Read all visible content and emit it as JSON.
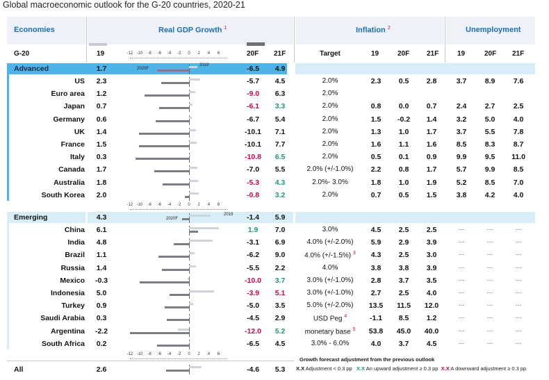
{
  "title": "Global macroeconomic outlook for the G-20 countries, 2020-21",
  "headers": {
    "economies": "Economies",
    "gdp": "Real GDP Growth",
    "gdp_sup": "1",
    "inflation": "Inflation",
    "inflation_sup": "2",
    "unemployment": "Unemployment"
  },
  "subheaders": {
    "g20": "G-20",
    "gdp_19": "19",
    "gdp_20f": "20F",
    "gdp_21f": "21F",
    "target": "Target",
    "inf_19": "19",
    "inf_20f": "20F",
    "inf_21f": "21F",
    "un_19": "19",
    "un_20f": "20F",
    "un_21f": "21F"
  },
  "axis_ticks": [
    "-12",
    "-10",
    "-8",
    "-6",
    "-4",
    "-2",
    "0",
    "2",
    "4",
    "6"
  ],
  "legend_labels": {
    "y2019": "2019",
    "y2020f": "2020F"
  },
  "advanced": {
    "label": "Advanced",
    "gdp19": "1.7",
    "gdp20f": "-6.5",
    "gdp21f": "4.9",
    "bar19": 1.7,
    "bar20f": -6.5,
    "rows": [
      {
        "name": "US",
        "gdp19": "2.3",
        "gdp20f": "-5.7",
        "gdp21f": "4.5",
        "bar19": 2.3,
        "bar20f": -5.7,
        "c20": "",
        "c21": "",
        "target": "2.0%",
        "inf19": "2.3",
        "inf20f": "0.5",
        "inf21f": "2.8",
        "un19": "3.7",
        "un20f": "8.9",
        "un21f": "7.6"
      },
      {
        "name": "Euro area",
        "gdp19": "1.2",
        "gdp20f": "-9.0",
        "gdp21f": "6.3",
        "bar19": 1.2,
        "bar20f": -9.0,
        "c20": "red",
        "c21": "",
        "target": "2.0%",
        "inf19": "",
        "inf20f": "",
        "inf21f": "",
        "un19": "",
        "un20f": "",
        "un21f": ""
      },
      {
        "name": "Japan",
        "gdp19": "0.7",
        "gdp20f": "-6.1",
        "gdp21f": "3.3",
        "bar19": 0.7,
        "bar20f": -6.1,
        "c20": "red",
        "c21": "green",
        "target": "2.0%",
        "inf19": "0.8",
        "inf20f": "0.0",
        "inf21f": "0.7",
        "un19": "2.4",
        "un20f": "2.7",
        "un21f": "2.5"
      },
      {
        "name": "Germany",
        "gdp19": "0.6",
        "gdp20f": "-6.7",
        "gdp21f": "5.4",
        "bar19": 0.6,
        "bar20f": -6.7,
        "c20": "",
        "c21": "",
        "target": "2.0%",
        "inf19": "1.5",
        "inf20f": "-0.2",
        "inf21f": "1.4",
        "un19": "3.2",
        "un20f": "5.0",
        "un21f": "4.0"
      },
      {
        "name": "UK",
        "gdp19": "1.4",
        "gdp20f": "-10.1",
        "gdp21f": "7.1",
        "bar19": 1.4,
        "bar20f": -10.1,
        "c20": "",
        "c21": "",
        "target": "2.0%",
        "inf19": "1.3",
        "inf20f": "1.0",
        "inf21f": "1.7",
        "un19": "3.7",
        "un20f": "5.5",
        "un21f": "7.8"
      },
      {
        "name": "France",
        "gdp19": "1.5",
        "gdp20f": "-10.1",
        "gdp21f": "7.7",
        "bar19": 1.5,
        "bar20f": -10.1,
        "c20": "",
        "c21": "",
        "target": "2.0%",
        "inf19": "1.6",
        "inf20f": "1.1",
        "inf21f": "1.6",
        "un19": "8.5",
        "un20f": "8.3",
        "un21f": "8.7"
      },
      {
        "name": "Italy",
        "gdp19": "0.3",
        "gdp20f": "-10.8",
        "gdp21f": "6.5",
        "bar19": 0.3,
        "bar20f": -10.8,
        "c20": "red",
        "c21": "green",
        "target": "2.0%",
        "inf19": "0.5",
        "inf20f": "0.1",
        "inf21f": "0.9",
        "un19": "9.9",
        "un20f": "9.5",
        "un21f": "11.0"
      },
      {
        "name": "Canada",
        "gdp19": "1.7",
        "gdp20f": "-7.0",
        "gdp21f": "5.5",
        "bar19": 1.7,
        "bar20f": -7.0,
        "c20": "",
        "c21": "",
        "target": "2.0% (+/-1.0%)",
        "inf19": "2.2",
        "inf20f": "0.8",
        "inf21f": "1.7",
        "un19": "5.7",
        "un20f": "9.9",
        "un21f": "8.5"
      },
      {
        "name": "Australia",
        "gdp19": "1.8",
        "gdp20f": "-5.3",
        "gdp21f": "4.3",
        "bar19": 1.8,
        "bar20f": -5.3,
        "c20": "red",
        "c21": "green",
        "target": "2.0%- 3.0%",
        "inf19": "1.8",
        "inf20f": "1.0",
        "inf21f": "1.9",
        "un19": "5.2",
        "un20f": "8.5",
        "un21f": "7.0"
      },
      {
        "name": "South Korea",
        "gdp19": "2.0",
        "gdp20f": "-0.8",
        "gdp21f": "3.2",
        "bar19": 2.0,
        "bar20f": -0.8,
        "c20": "red",
        "c21": "green",
        "target": "2.0%",
        "inf19": "0.7",
        "inf20f": "0.5",
        "inf21f": "1.5",
        "un19": "3.8",
        "un20f": "4.2",
        "un21f": "4.0"
      }
    ]
  },
  "emerging": {
    "label": "Emerging",
    "gdp19": "4.3",
    "gdp20f": "-1.4",
    "gdp21f": "5.9",
    "bar19": 4.3,
    "bar20f": -1.4,
    "rows": [
      {
        "name": "China",
        "gdp19": "6.1",
        "gdp20f": "1.9",
        "gdp21f": "7.0",
        "bar19": 6.1,
        "bar20f": 1.9,
        "c20": "green",
        "c21": "",
        "target": "3.0%",
        "tsup": "",
        "inf19": "4.5",
        "inf20f": "2.5",
        "inf21f": "2.5",
        "un19": "---",
        "un20f": "---",
        "un21f": "---"
      },
      {
        "name": "India",
        "gdp19": "4.8",
        "gdp20f": "-3.1",
        "gdp21f": "6.9",
        "bar19": 4.8,
        "bar20f": -3.1,
        "c20": "",
        "c21": "",
        "target": "4.0% (+/-2.0%)",
        "tsup": "",
        "inf19": "5.9",
        "inf20f": "2.9",
        "inf21f": "3.9",
        "un19": "---",
        "un20f": "---",
        "un21f": "---"
      },
      {
        "name": "Brazil",
        "gdp19": "1.1",
        "gdp20f": "-6.2",
        "gdp21f": "9.0",
        "bar19": 1.1,
        "bar20f": -6.2,
        "c20": "",
        "c21": "",
        "target": "4.0% (+/-1.5%)",
        "tsup": "3",
        "inf19": "4.3",
        "inf20f": "2.5",
        "inf21f": "3.0",
        "un19": "---",
        "un20f": "---",
        "un21f": "---"
      },
      {
        "name": "Russia",
        "gdp19": "1.4",
        "gdp20f": "-5.5",
        "gdp21f": "2.2",
        "bar19": 1.4,
        "bar20f": -5.5,
        "c20": "",
        "c21": "",
        "target": "4.0%",
        "tsup": "",
        "inf19": "3.8",
        "inf20f": "3.8",
        "inf21f": "3.9",
        "un19": "---",
        "un20f": "---",
        "un21f": "---"
      },
      {
        "name": "Mexico",
        "gdp19": "-0.3",
        "gdp20f": "-10.0",
        "gdp21f": "3.7",
        "bar19": -0.3,
        "bar20f": -10.0,
        "c20": "red",
        "c21": "green",
        "target": "3.0% (+/-1.0%)",
        "tsup": "",
        "inf19": "2.8",
        "inf20f": "3.7",
        "inf21f": "3.5",
        "un19": "---",
        "un20f": "---",
        "un21f": "---"
      },
      {
        "name": "Indonesia",
        "gdp19": "5.0",
        "gdp20f": "-3.9",
        "gdp21f": "5.1",
        "bar19": 5.0,
        "bar20f": -3.9,
        "c20": "red",
        "c21": "red",
        "target": "3.0% (+/-1.0%)",
        "tsup": "",
        "inf19": "2.7",
        "inf20f": "2.5",
        "inf21f": "4.0",
        "un19": "---",
        "un20f": "---",
        "un21f": "---"
      },
      {
        "name": "Turkey",
        "gdp19": "0.9",
        "gdp20f": "-5.0",
        "gdp21f": "3.5",
        "bar19": 0.9,
        "bar20f": -5.0,
        "c20": "",
        "c21": "",
        "target": "5.0% (+/-2.0%)",
        "tsup": "",
        "inf19": "13.5",
        "inf20f": "11.5",
        "inf21f": "12.0",
        "un19": "---",
        "un20f": "---",
        "un21f": "---"
      },
      {
        "name": "Saudi Arabia",
        "gdp19": "0.3",
        "gdp20f": "-4.5",
        "gdp21f": "2.9",
        "bar19": 0.3,
        "bar20f": -4.5,
        "c20": "",
        "c21": "",
        "target": "USD Peg",
        "tsup": "4",
        "inf19": "-1.1",
        "inf20f": "8.5",
        "inf21f": "1.2",
        "un19": "---",
        "un20f": "---",
        "un21f": "---"
      },
      {
        "name": "Argentina",
        "gdp19": "-2.2",
        "gdp20f": "-12.0",
        "gdp21f": "5.2",
        "bar19": -2.2,
        "bar20f": -12.0,
        "c20": "red",
        "c21": "green",
        "target": "monetary base",
        "tsup": "5",
        "inf19": "53.8",
        "inf20f": "45.0",
        "inf21f": "40.0",
        "un19": "---",
        "un20f": "---",
        "un21f": "---"
      },
      {
        "name": "South Africa",
        "gdp19": "0.2",
        "gdp20f": "-6.5",
        "gdp21f": "4.5",
        "bar19": 0.2,
        "bar20f": -6.5,
        "c20": "",
        "c21": "",
        "target": "3.0% - 6.0%",
        "tsup": "",
        "inf19": "4.0",
        "inf20f": "3.7",
        "inf21f": "4.5",
        "un19": "---",
        "un20f": "---",
        "un21f": "---"
      }
    ]
  },
  "all": {
    "label": "All",
    "gdp19": "2.6",
    "gdp20f": "-4.6",
    "gdp21f": "5.3",
    "bar19": 2.6,
    "bar20f": -4.6
  },
  "legend": {
    "title": "Growth forecast adjustment from the previous outlook",
    "xx": "X.X",
    "neutral": "Adjustment < 0.3 pp",
    "up": "An upward adjustment ≥ 0.3 pp",
    "down": "A downward adjustment ≥ 0.3 pp"
  },
  "colors": {
    "accent": "#4cb4e6",
    "header_text": "#1f6fb5",
    "red": "#d6004f",
    "green": "#1b9a6b",
    "bar2019": "#d0d3da",
    "bar2020": "#7a7d85"
  }
}
